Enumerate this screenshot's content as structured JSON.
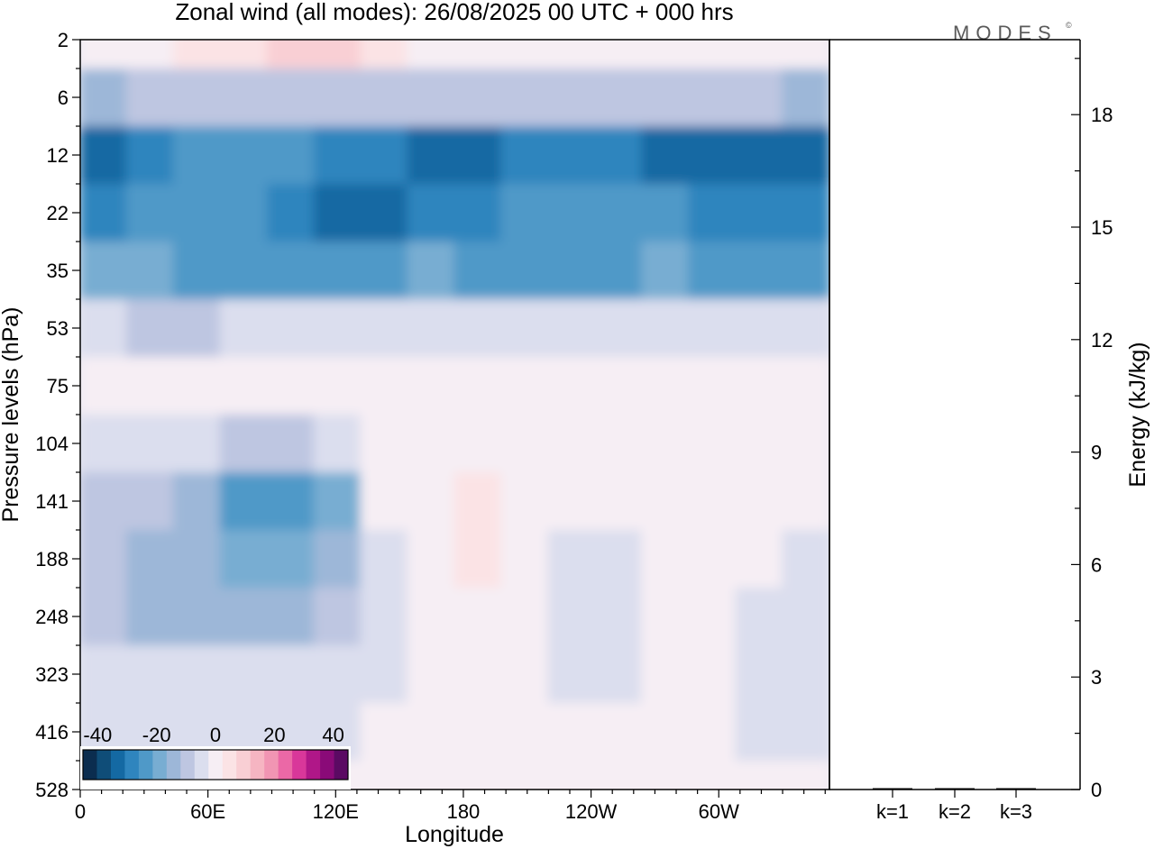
{
  "title": "Zonal wind (all modes):  26/08/2025  00 UTC  + 000 hrs",
  "logo": {
    "text": "MODES",
    "mark": "©"
  },
  "chart_data": [
    {
      "type": "heatmap",
      "field": "Zonal wind",
      "xlabel": "Longitude",
      "ylabel": "Pressure levels (hPa)",
      "x_ticks": [
        "0",
        "60E",
        "120E",
        "180",
        "120W",
        "60W"
      ],
      "x_tick_lons": [
        0,
        60,
        120,
        180,
        240,
        300
      ],
      "x_range": [
        0,
        352
      ],
      "y_ticks": [
        "2",
        "6",
        "12",
        "22",
        "35",
        "53",
        "75",
        "104",
        "141",
        "188",
        "248",
        "323",
        "416",
        "528"
      ],
      "y_axis": "pressure levels, top to bottom",
      "colorbar": {
        "tick_labels": [
          "-40",
          "-20",
          "0",
          "20",
          "40"
        ],
        "range": [
          -45,
          45
        ],
        "colors": [
          "#0b2d4f",
          "#0f4d78",
          "#1469a3",
          "#2f85be",
          "#4f99c8",
          "#78add2",
          "#9db7d8",
          "#bec6e1",
          "#dbdeee",
          "#f6eef4",
          "#fbe3e5",
          "#f9cfd4",
          "#f6b5c2",
          "#f195b3",
          "#eb68a6",
          "#d9379a",
          "#b01788",
          "#8a0a78",
          "#5b0a63"
        ]
      },
      "approx_values": [
        {
          "level": "2",
          "values": [
            0,
            1,
            3,
            7,
            9,
            8,
            4,
            1,
            0,
            -1,
            -1,
            -1,
            0,
            1,
            1,
            0
          ]
        },
        {
          "level": "6",
          "values": [
            -14,
            -10,
            -8,
            -8,
            -8,
            -10,
            -10,
            -10,
            -10,
            -10,
            -10,
            -10,
            -10,
            -10,
            -10,
            -14
          ]
        },
        {
          "level": "12",
          "values": [
            -32,
            -30,
            -22,
            -24,
            -26,
            -28,
            -30,
            -32,
            -32,
            -30,
            -28,
            -30,
            -34,
            -34,
            -32,
            -34
          ]
        },
        {
          "level": "22",
          "values": [
            -28,
            -26,
            -22,
            -24,
            -30,
            -34,
            -32,
            -30,
            -28,
            -26,
            -24,
            -24,
            -26,
            -28,
            -28,
            -30
          ]
        },
        {
          "level": "35",
          "values": [
            -20,
            -20,
            -22,
            -22,
            -24,
            -24,
            -22,
            -20,
            -22,
            -24,
            -24,
            -22,
            -20,
            -22,
            -22,
            -24
          ]
        },
        {
          "level": "53",
          "values": [
            -6,
            -8,
            -8,
            -6,
            -5,
            -4,
            -4,
            -4,
            -5,
            -5,
            -5,
            -5,
            -4,
            -4,
            -4,
            -5
          ]
        },
        {
          "level": "75",
          "values": [
            1,
            1,
            1,
            1,
            0,
            0,
            -1,
            -2,
            0,
            0,
            0,
            0,
            0,
            0,
            0,
            0
          ]
        },
        {
          "level": "104",
          "values": [
            -3,
            -4,
            -5,
            -9,
            -10,
            -5,
            -1,
            0,
            1,
            0,
            -1,
            -1,
            1,
            0,
            1,
            0
          ]
        },
        {
          "level": "141",
          "values": [
            -8,
            -10,
            -14,
            -22,
            -24,
            -18,
            -2,
            2,
            3,
            1,
            -2,
            -2,
            1,
            1,
            2,
            0
          ]
        },
        {
          "level": "188",
          "values": [
            -10,
            -12,
            -14,
            -18,
            -18,
            -16,
            -4,
            2,
            3,
            0,
            -3,
            -3,
            0,
            0,
            -2,
            -4
          ]
        },
        {
          "level": "248",
          "values": [
            -10,
            -12,
            -12,
            -12,
            -12,
            -10,
            -4,
            1,
            1,
            -2,
            -4,
            -4,
            -2,
            -2,
            -4,
            -6
          ]
        },
        {
          "level": "323",
          "values": [
            -5,
            -6,
            -6,
            -6,
            -6,
            -6,
            -3,
            0,
            -1,
            -2,
            -3,
            -3,
            -2,
            -2,
            -4,
            -4
          ]
        },
        {
          "level": "416",
          "values": [
            -3,
            -4,
            -3,
            -3,
            -3,
            -4,
            -2,
            -1,
            -2,
            -2,
            -2,
            -2,
            -2,
            -2,
            -3,
            -3
          ]
        },
        {
          "level": "528",
          "values": [
            -2,
            -2,
            -2,
            -2,
            -2,
            -2,
            -2,
            -2,
            -2,
            -2,
            -2,
            -2,
            -2,
            -2,
            -2,
            -2
          ]
        }
      ]
    },
    {
      "type": "bar",
      "categories": [
        "k=1",
        "k=2",
        "k=3"
      ],
      "values": [
        0.02,
        0.02,
        0.01
      ],
      "ylabel": "Energy (kJ/kg)",
      "ylim": [
        0,
        20
      ],
      "y_ticks": [
        "0",
        "3",
        "6",
        "9",
        "12",
        "15",
        "18"
      ],
      "y_tick_values": [
        0,
        3,
        6,
        9,
        12,
        15,
        18
      ]
    }
  ]
}
